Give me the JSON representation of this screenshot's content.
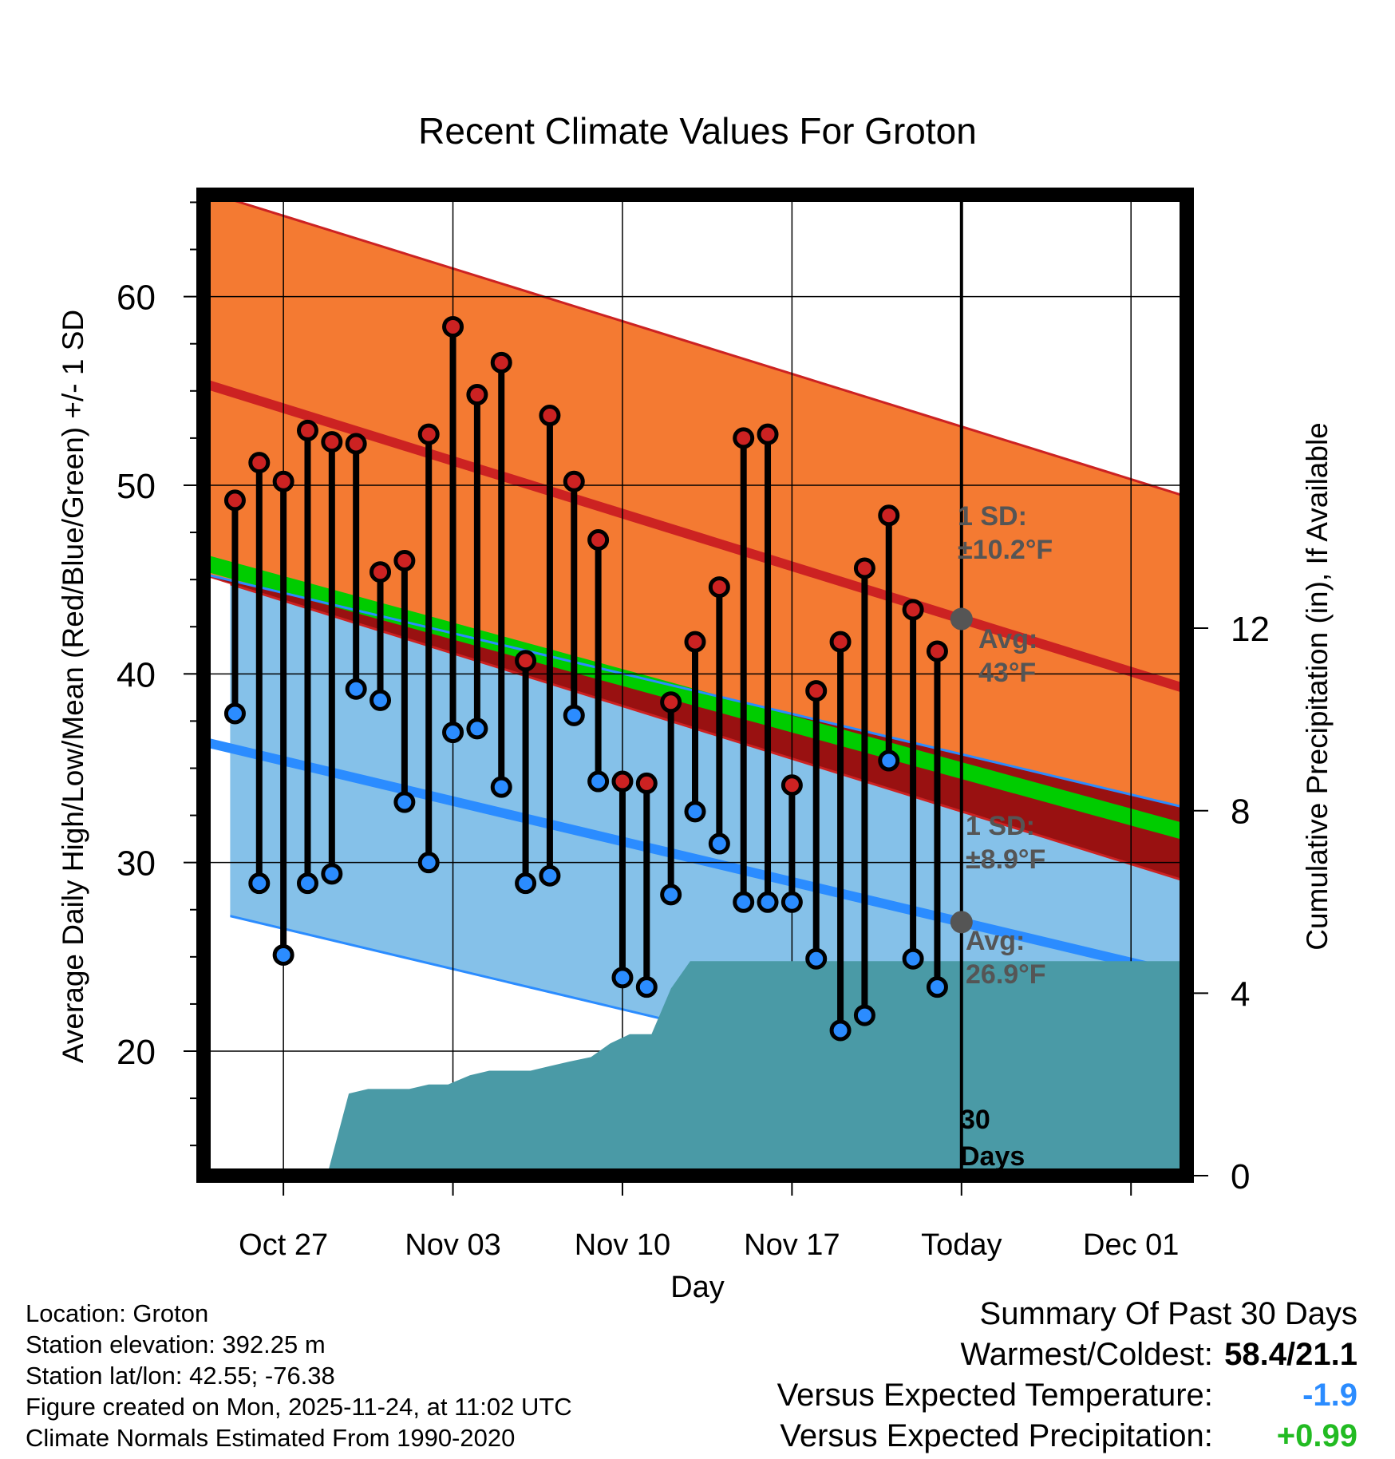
{
  "chart_data": {
    "type": "line",
    "title": "Recent Climate Values For Groton",
    "xlabel": "Day",
    "ylabel": "Average Daily High/Low/Mean (Red/Blue/Green) +/- 1 SD",
    "y2label": "Cumulative Precipitation (in), If Available",
    "x_range": [
      -3.3,
      37.3
    ],
    "ylim": [
      13.4,
      65.4
    ],
    "y2lim": [
      0,
      21.5
    ],
    "x_ticks": [
      {
        "x": 0,
        "label": "Oct 27"
      },
      {
        "x": 7,
        "label": "Nov 03"
      },
      {
        "x": 14,
        "label": "Nov 10"
      },
      {
        "x": 21,
        "label": "Nov 17"
      },
      {
        "x": 28,
        "label": "Today"
      },
      {
        "x": 35,
        "label": "Dec 01"
      }
    ],
    "y_ticks": [
      20,
      30,
      40,
      50,
      60
    ],
    "y2_ticks": [
      0,
      4,
      8,
      12
    ],
    "today_x": 28,
    "normal_high": {
      "start": 55.4,
      "end": 39.2
    },
    "normal_high_sd": 10.2,
    "normal_low": {
      "start": 36.4,
      "end": 24.0
    },
    "normal_low_sd": 8.9,
    "normal_mean": {
      "start": 45.9,
      "end": 31.6
    },
    "period_start_x": -2,
    "days": [
      -2,
      -1,
      0,
      1,
      2,
      3,
      4,
      5,
      6,
      7,
      8,
      9,
      10,
      11,
      12,
      13,
      14,
      15,
      16,
      17,
      18,
      19,
      20,
      21,
      22,
      23,
      24,
      25,
      26,
      27
    ],
    "highs": [
      49.2,
      51.2,
      50.2,
      52.9,
      52.3,
      52.2,
      45.4,
      46.0,
      52.7,
      58.4,
      54.8,
      56.5,
      40.7,
      53.7,
      50.2,
      47.1,
      34.3,
      34.2,
      38.5,
      41.7,
      44.6,
      52.5,
      52.7,
      34.1,
      39.1,
      41.7,
      45.6,
      48.4,
      43.4,
      41.2
    ],
    "lows": [
      37.9,
      28.9,
      25.1,
      28.9,
      29.4,
      39.2,
      38.6,
      33.2,
      30.0,
      36.9,
      37.1,
      34.0,
      28.9,
      29.3,
      37.8,
      34.3,
      23.9,
      23.4,
      28.3,
      32.7,
      31.0,
      27.9,
      27.9,
      27.9,
      24.9,
      21.1,
      21.9,
      35.4,
      24.9,
      23.4
    ],
    "precip_cumulative": {
      "x": [
        1.8,
        2.7,
        3.5,
        4.3,
        5.2,
        6.0,
        6.8,
        7.7,
        8.5,
        9.3,
        10.2,
        11.0,
        11.8,
        12.7,
        13.5,
        14.3,
        15.2,
        16.0,
        16.8,
        17.7,
        18.5,
        19.3,
        20.2,
        21.0,
        21.8,
        22.6,
        23.5,
        24.3,
        25.2,
        26.0,
        26.8,
        27.7,
        28.5,
        37.3
      ],
      "y": [
        0,
        1.8,
        1.9,
        1.9,
        1.9,
        2.0,
        2.0,
        2.2,
        2.3,
        2.3,
        2.3,
        2.4,
        2.5,
        2.6,
        2.9,
        3.1,
        3.1,
        4.1,
        4.7,
        4.7,
        4.7,
        4.7,
        4.7,
        4.7,
        4.7,
        4.7,
        4.7,
        4.7,
        4.7,
        4.7,
        4.7,
        4.7,
        4.7,
        4.7
      ]
    },
    "annotations": {
      "high_sd": {
        "line1": "1 SD:",
        "line2": "±10.2°F"
      },
      "high_avg": {
        "line1": "Avg:",
        "line2": "43°F"
      },
      "low_sd": {
        "line1": "1 SD:",
        "line2": "±8.9°F"
      },
      "low_avg": {
        "line1": "Avg:",
        "line2": "26.9°F"
      },
      "days": {
        "line1": "30",
        "line2": "Days"
      }
    },
    "colors": {
      "high_band": "#f47a32",
      "high_line": "#cc2222",
      "low_band": "#85c1e9",
      "low_line": "#2b8cff",
      "mean_band": "#00cc00",
      "overlap": "#991111",
      "precip": "#4a9aa6",
      "high_marker": "#cc2222",
      "low_marker": "#2b8cff",
      "annotation": "#555555"
    }
  },
  "info": {
    "location": "Location: Groton",
    "elevation": "Station elevation: 392.25 m",
    "latlon": "Station lat/lon: 42.55; -76.38",
    "created": "Figure created on Mon, 2025-11-24, at 11:02 UTC",
    "normals": "Climate Normals Estimated From 1990-2020"
  },
  "summary": {
    "title": "Summary Of Past 30 Days",
    "warmest_label": "Warmest/Coldest:",
    "warmest_value": "58.4/21.1",
    "temp_label": "Versus Expected Temperature:",
    "temp_value": "-1.9",
    "temp_color": "#2b8cff",
    "precip_label": "Versus Expected Precipitation:",
    "precip_value": "+0.99",
    "precip_color": "#22bb22"
  }
}
